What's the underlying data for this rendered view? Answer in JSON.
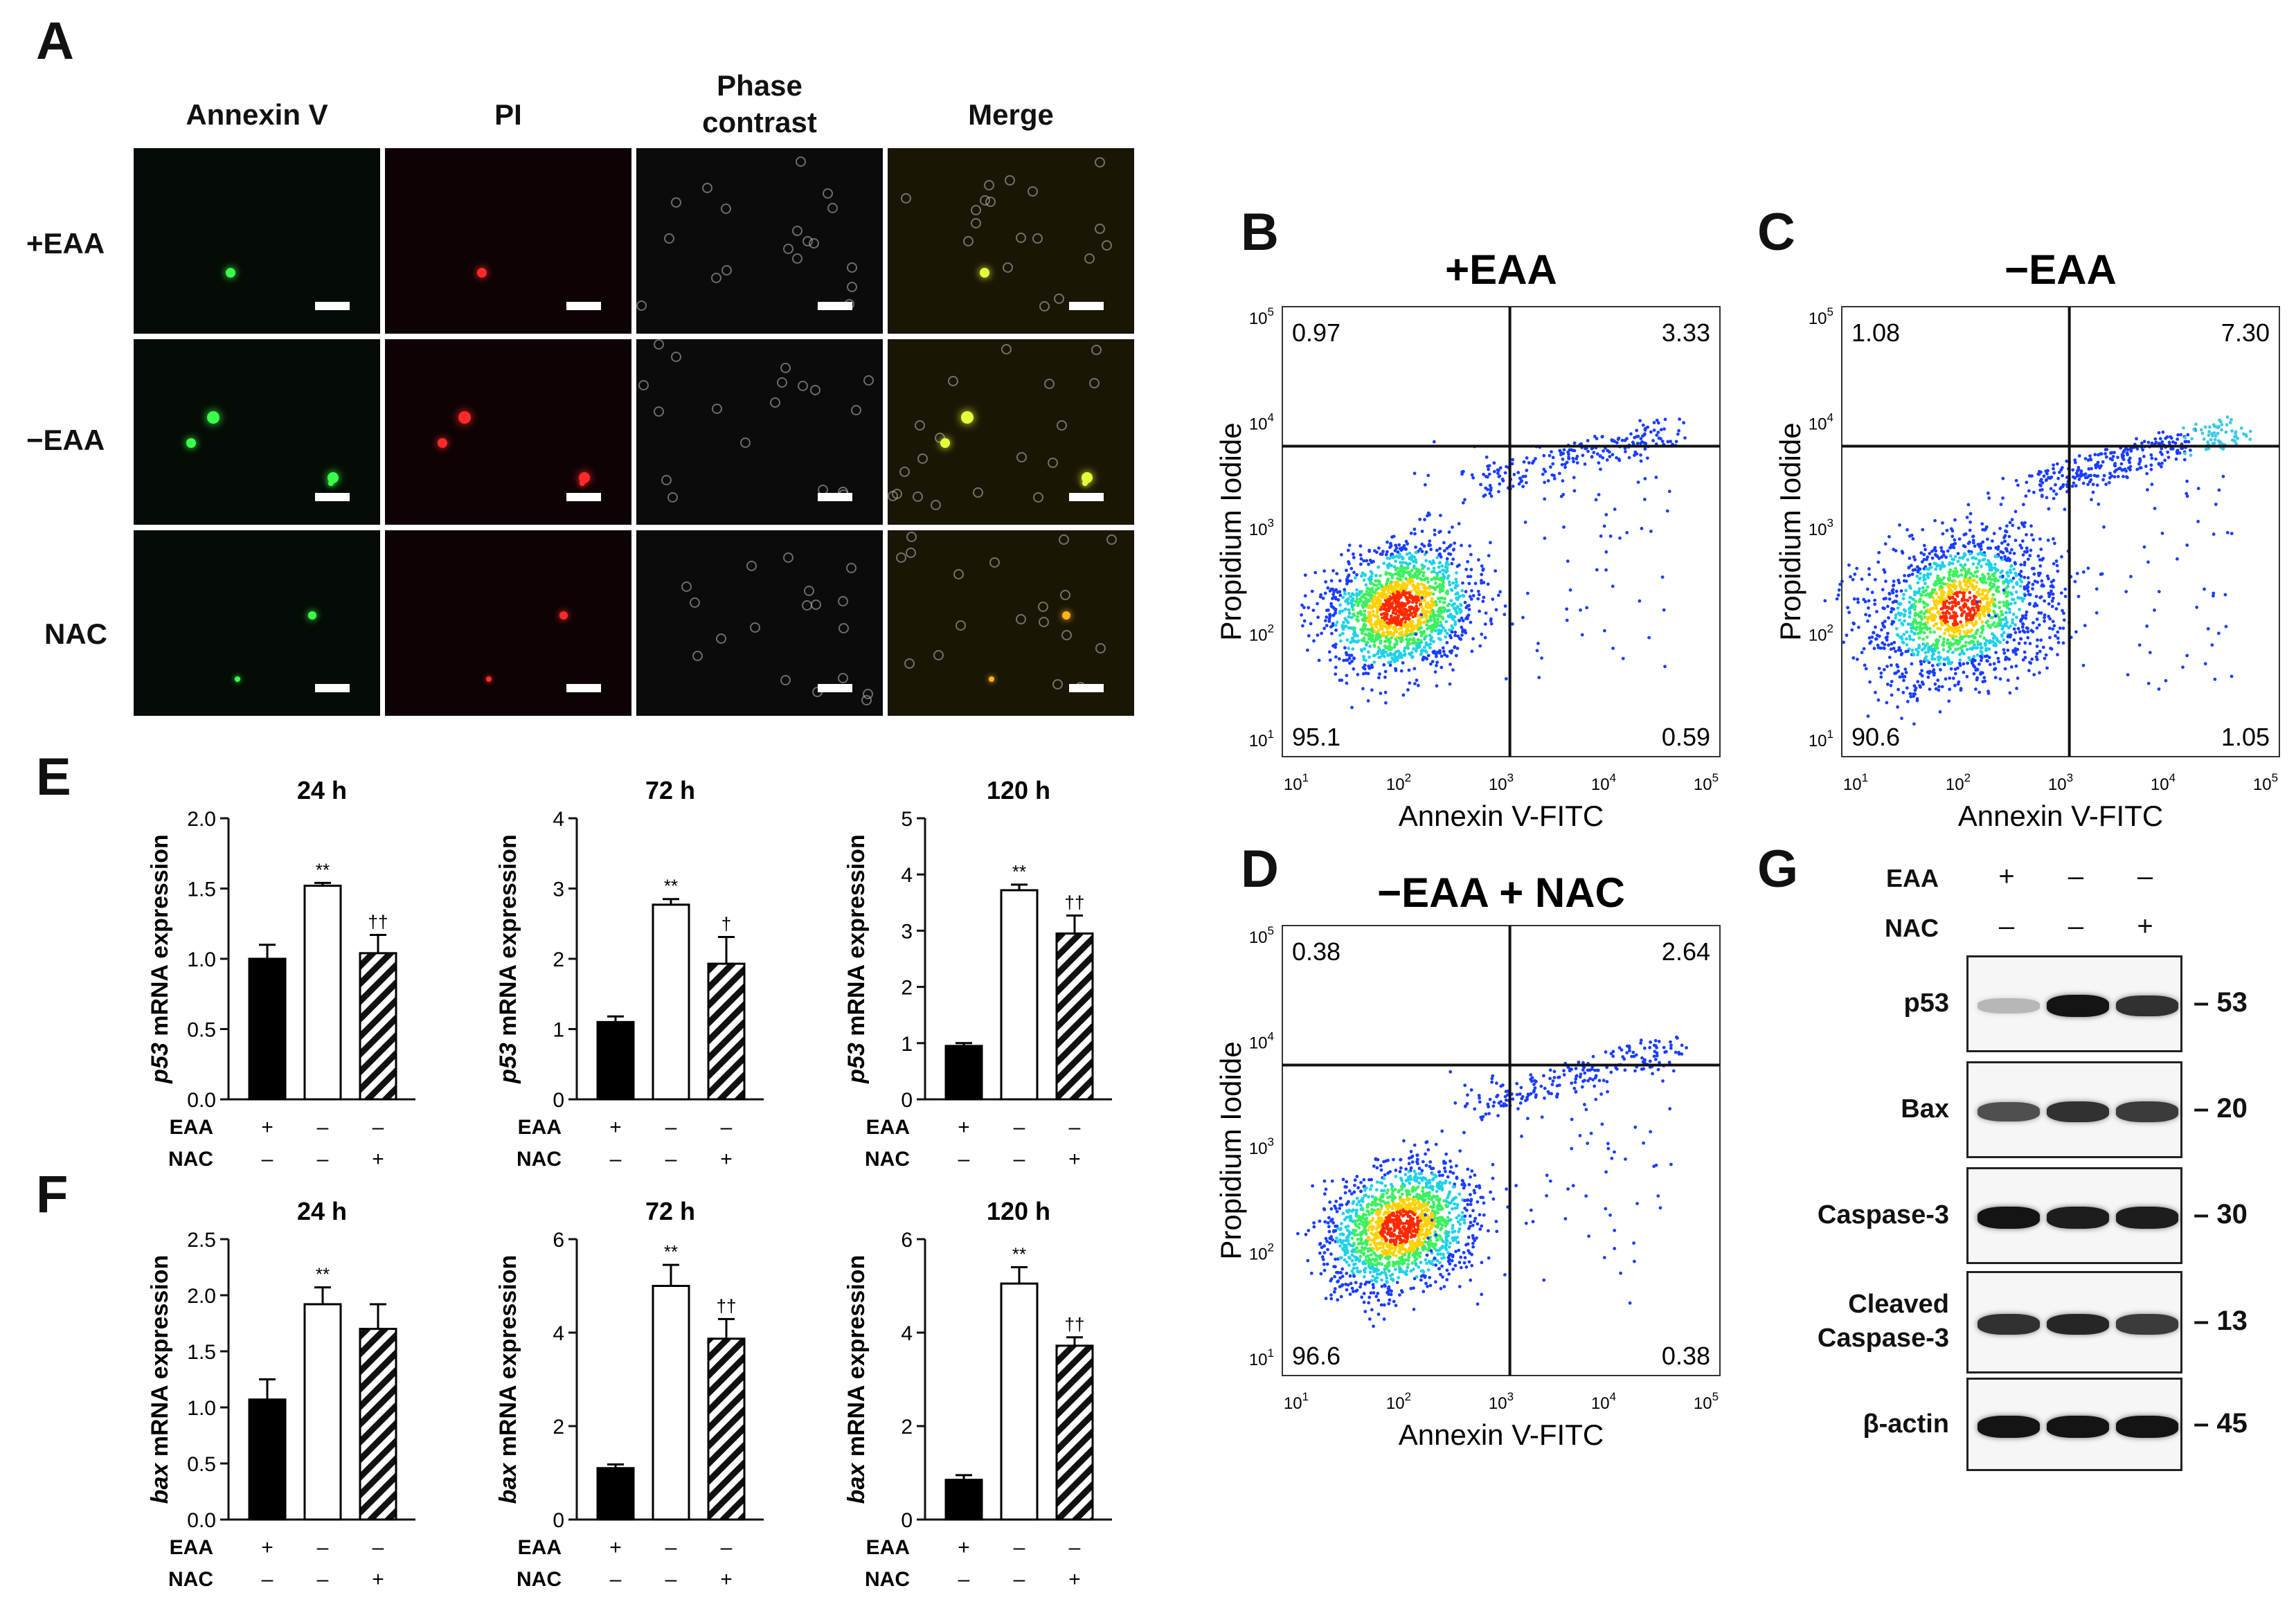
{
  "panels": {
    "A": "A",
    "B": "B",
    "C": "C",
    "D": "D",
    "E": "E",
    "F": "F",
    "G": "G"
  },
  "panelA": {
    "columns": [
      "Annexin V",
      "PI",
      "Phase\ncontrast",
      "Merge"
    ],
    "rows": [
      "+EAA",
      "−EAA",
      "NAC"
    ]
  },
  "flow": [
    {
      "id": "B",
      "title": "+EAA",
      "quadrants": {
        "ul": "0.97",
        "ur": "3.33",
        "ll": "95.1",
        "lr": "0.59"
      }
    },
    {
      "id": "C",
      "title": "−EAA",
      "quadrants": {
        "ul": "1.08",
        "ur": "7.30",
        "ll": "90.6",
        "lr": "1.05"
      }
    },
    {
      "id": "D",
      "title": "−EAA + NAC",
      "quadrants": {
        "ul": "0.38",
        "ur": "2.64",
        "ll": "96.6",
        "lr": "0.38"
      }
    }
  ],
  "flow_axes": {
    "xlabel": "Annexin V-FITC",
    "ylabel": "Propidium Iodide",
    "ticks": [
      {
        "base": "10",
        "exp": "1"
      },
      {
        "base": "10",
        "exp": "2"
      },
      {
        "base": "10",
        "exp": "3"
      },
      {
        "base": "10",
        "exp": "4"
      },
      {
        "base": "10",
        "exp": "5"
      }
    ]
  },
  "chart_data": [
    {
      "panel": "E",
      "type": "bar",
      "title": "24 h",
      "gene": "p53",
      "ylabel_suffix": " mRNA expression",
      "ylim": [
        0,
        2.0
      ],
      "yticks": [
        "0.0",
        "0.5",
        "1.0",
        "1.5",
        "2.0"
      ],
      "values": [
        1.0,
        1.52,
        1.04
      ],
      "errors": [
        0.1,
        0.02,
        0.13
      ],
      "sig": [
        "",
        "**",
        "††"
      ]
    },
    {
      "panel": "E",
      "type": "bar",
      "title": "72 h",
      "gene": "p53",
      "ylabel_suffix": " mRNA expression",
      "ylim": [
        0,
        4
      ],
      "yticks": [
        "0",
        "1",
        "2",
        "3",
        "4"
      ],
      "values": [
        1.1,
        2.77,
        1.93
      ],
      "errors": [
        0.08,
        0.08,
        0.38
      ],
      "sig": [
        "",
        "**",
        "†"
      ]
    },
    {
      "panel": "E",
      "type": "bar",
      "title": "120 h",
      "gene": "p53",
      "ylabel_suffix": " mRNA expression",
      "ylim": [
        0,
        5
      ],
      "yticks": [
        "0",
        "1",
        "2",
        "3",
        "4",
        "5"
      ],
      "values": [
        0.95,
        3.72,
        2.95
      ],
      "errors": [
        0.05,
        0.1,
        0.32
      ],
      "sig": [
        "",
        "**",
        "††"
      ]
    },
    {
      "panel": "F",
      "type": "bar",
      "title": "24 h",
      "gene": "bax",
      "ylabel_suffix": " mRNA expression",
      "ylim": [
        0,
        2.5
      ],
      "yticks": [
        "0.0",
        "0.5",
        "1.0",
        "1.5",
        "2.0",
        "2.5"
      ],
      "values": [
        1.07,
        1.92,
        1.7
      ],
      "errors": [
        0.18,
        0.15,
        0.22
      ],
      "sig": [
        "",
        "**",
        ""
      ]
    },
    {
      "panel": "F",
      "type": "bar",
      "title": "72 h",
      "gene": "bax",
      "ylabel_suffix": " mRNA expression",
      "ylim": [
        0,
        6
      ],
      "yticks": [
        "0",
        "2",
        "4",
        "6"
      ],
      "values": [
        1.1,
        5.0,
        3.87
      ],
      "errors": [
        0.08,
        0.45,
        0.42
      ],
      "sig": [
        "",
        "**",
        "††"
      ]
    },
    {
      "panel": "F",
      "type": "bar",
      "title": "120 h",
      "gene": "bax",
      "ylabel_suffix": " mRNA expression",
      "ylim": [
        0,
        6
      ],
      "yticks": [
        "0",
        "2",
        "4",
        "6"
      ],
      "values": [
        0.85,
        5.05,
        3.72
      ],
      "errors": [
        0.1,
        0.35,
        0.18
      ],
      "sig": [
        "",
        "**",
        "††"
      ]
    }
  ],
  "conditions": {
    "eaa_label": "EAA",
    "nac_label": "NAC",
    "eaa": [
      "+",
      "–",
      "–"
    ],
    "nac": [
      "–",
      "–",
      "+"
    ]
  },
  "western": {
    "eaa_label": "EAA",
    "nac_label": "NAC",
    "eaa": [
      "+",
      "–",
      "–"
    ],
    "nac": [
      "–",
      "–",
      "+"
    ],
    "rows": [
      {
        "label": "p53",
        "mw": "53",
        "intensity": [
          0.15,
          1.0,
          0.85
        ]
      },
      {
        "label": "Bax",
        "mw": "20",
        "intensity": [
          0.7,
          0.85,
          0.8
        ]
      },
      {
        "label": "Caspase-3",
        "mw": "30",
        "intensity": [
          1.0,
          0.95,
          0.95
        ]
      },
      {
        "label": "Cleaved\nCaspase-3",
        "mw": "13",
        "intensity": [
          0.85,
          0.9,
          0.8
        ]
      },
      {
        "label": "β-actin",
        "mw": "45",
        "intensity": [
          1.0,
          1.0,
          1.0
        ]
      }
    ]
  }
}
